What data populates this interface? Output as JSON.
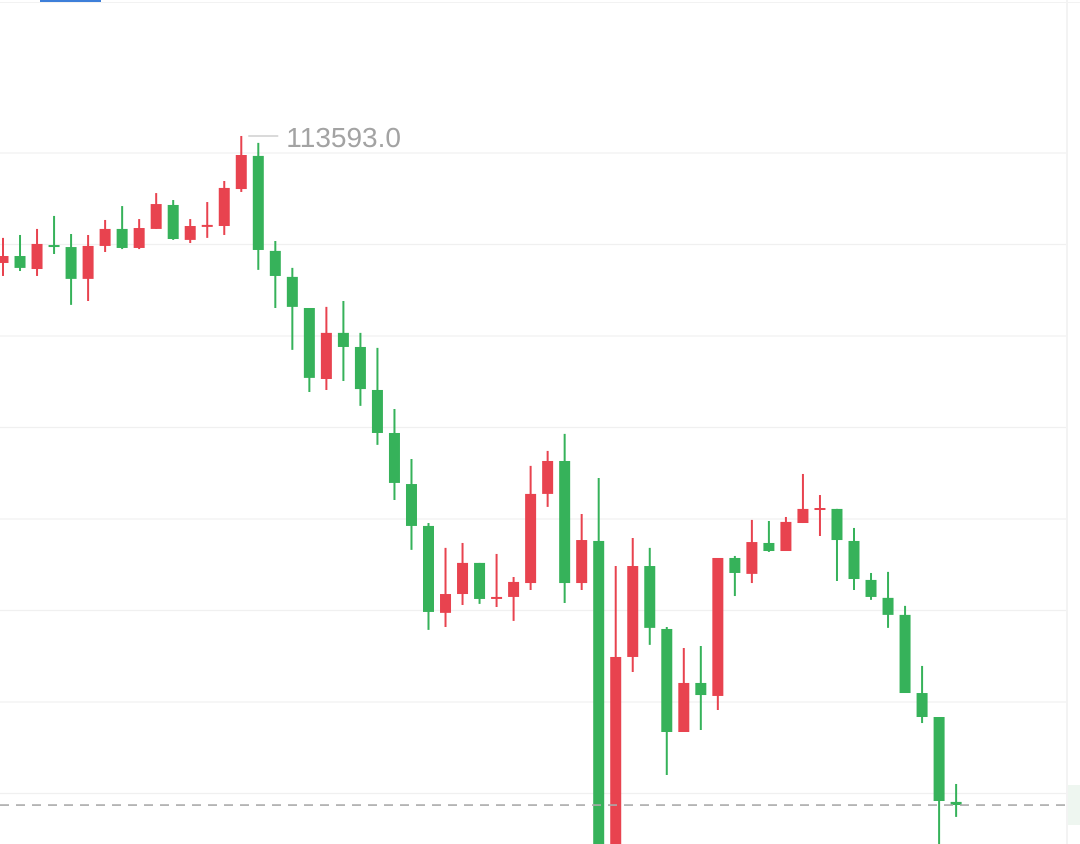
{
  "chart_data": {
    "type": "candlestick",
    "title": "",
    "xlabel": "",
    "ylabel": "",
    "ylim": [
      109724,
      114336
    ],
    "grid": true,
    "grid_values": [
      110000,
      110500,
      111000,
      111500,
      112000,
      112500,
      113000,
      113500
    ],
    "up_color": "#e8434f",
    "down_color": "#36b25a",
    "high_marker": {
      "value": 113593.0,
      "label": "113593.0"
    },
    "current_price": 109937,
    "candles_ohlc": [
      [
        112899,
        113036,
        112828,
        112937
      ],
      [
        112937,
        113052,
        112855,
        112872
      ],
      [
        112866,
        113085,
        112828,
        113003
      ],
      [
        112997,
        113156,
        112948,
        112992
      ],
      [
        112986,
        113057,
        112670,
        112812
      ],
      [
        112812,
        113052,
        112691,
        112992
      ],
      [
        112992,
        113134,
        112959,
        113085
      ],
      [
        113085,
        113210,
        112975,
        112981
      ],
      [
        112981,
        113139,
        112975,
        113090
      ],
      [
        113085,
        113281,
        113085,
        113221
      ],
      [
        113216,
        113243,
        113025,
        113030
      ],
      [
        113025,
        113139,
        113008,
        113101
      ],
      [
        113101,
        113232,
        113036,
        113107
      ],
      [
        113101,
        113347,
        113052,
        113309
      ],
      [
        113303,
        113593,
        113287,
        113489
      ],
      [
        113484,
        113555,
        112861,
        112970
      ],
      [
        112965,
        113019,
        112653,
        112828
      ],
      [
        112823,
        112872,
        112424,
        112659
      ],
      [
        112653,
        112653,
        112194,
        112271
      ],
      [
        112265,
        112659,
        112205,
        112517
      ],
      [
        112517,
        112691,
        112254,
        112440
      ],
      [
        112440,
        112517,
        112118,
        112210
      ],
      [
        112205,
        112435,
        111905,
        111970
      ],
      [
        111970,
        112101,
        111604,
        111697
      ],
      [
        111691,
        111828,
        111331,
        111462
      ],
      [
        111462,
        111478,
        110894,
        110992
      ],
      [
        110987,
        111342,
        110910,
        111090
      ],
      [
        111090,
        111369,
        111030,
        111260
      ],
      [
        111260,
        111260,
        111036,
        111063
      ],
      [
        111063,
        111309,
        111019,
        111074
      ],
      [
        111074,
        111183,
        110943,
        111156
      ],
      [
        111150,
        111790,
        111112,
        111637
      ],
      [
        111637,
        111872,
        111566,
        111817
      ],
      [
        111817,
        111965,
        111041,
        111150
      ],
      [
        111150,
        111527,
        111112,
        111385
      ],
      [
        111380,
        111724,
        109418,
        109527
      ],
      [
        109530,
        111243,
        109445,
        110746
      ],
      [
        110746,
        111396,
        110664,
        111243
      ],
      [
        111243,
        111342,
        110812,
        110905
      ],
      [
        110899,
        110910,
        110101,
        110336
      ],
      [
        110336,
        110795,
        110336,
        110604
      ],
      [
        110604,
        110806,
        110347,
        110538
      ],
      [
        110533,
        111287,
        110456,
        111287
      ],
      [
        111287,
        111298,
        111079,
        111205
      ],
      [
        111200,
        111495,
        111150,
        111374
      ],
      [
        111369,
        111489,
        111320,
        111325
      ],
      [
        111325,
        111511,
        111325,
        111484
      ],
      [
        111478,
        111746,
        111478,
        111555
      ],
      [
        111555,
        111631,
        111407,
        111560
      ],
      [
        111555,
        111555,
        111161,
        111385
      ],
      [
        111380,
        111451,
        111112,
        111172
      ],
      [
        111167,
        111205,
        111058,
        111074
      ],
      [
        111069,
        111211,
        110905,
        110976
      ],
      [
        110976,
        111025,
        110549,
        110549
      ],
      [
        110549,
        110697,
        110385,
        110418
      ],
      [
        110418,
        110418,
        109582,
        109959
      ],
      [
        109954,
        110052,
        109872,
        109937
      ]
    ]
  }
}
